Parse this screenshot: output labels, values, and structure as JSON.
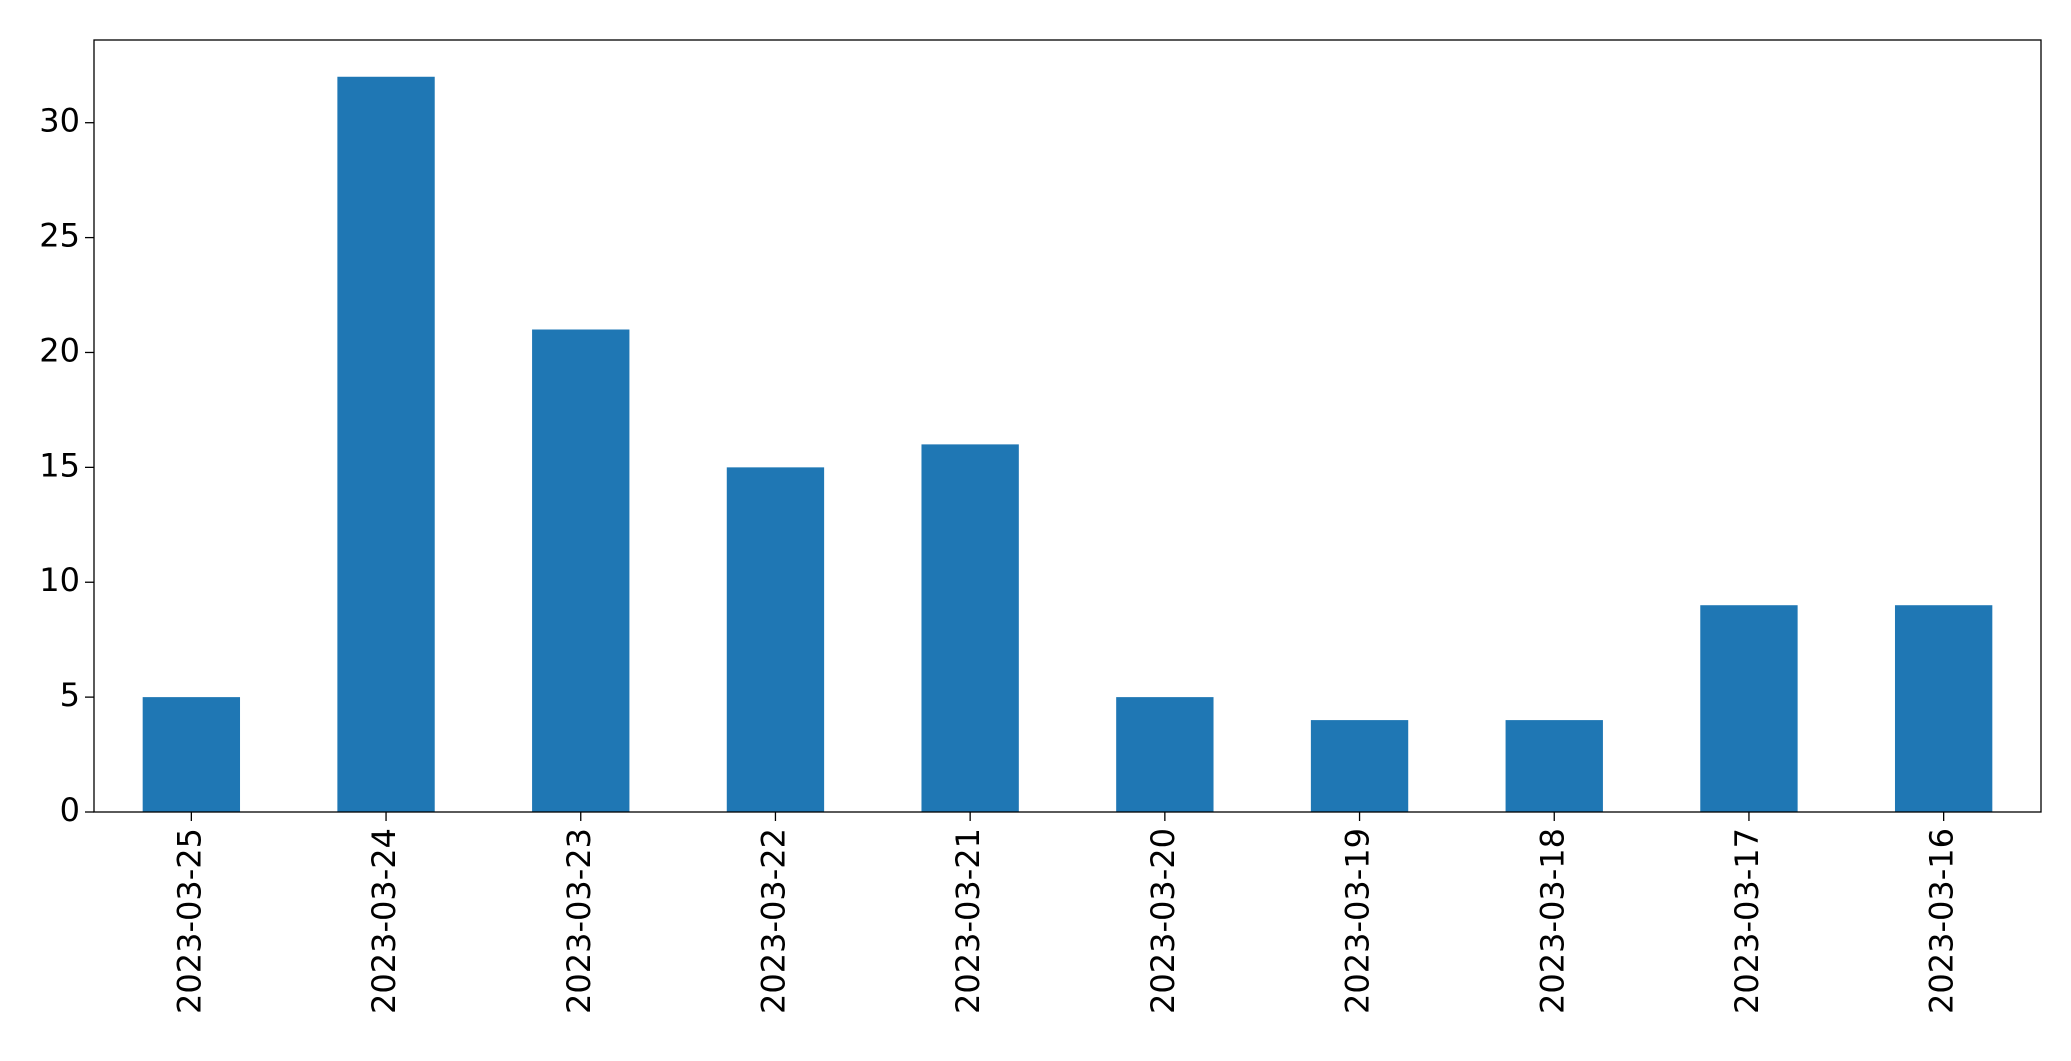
{
  "chart_data": {
    "type": "bar",
    "categories": [
      "2023-03-25",
      "2023-03-24",
      "2023-03-23",
      "2023-03-22",
      "2023-03-21",
      "2023-03-20",
      "2023-03-19",
      "2023-03-18",
      "2023-03-17",
      "2023-03-16"
    ],
    "values": [
      5,
      32,
      21,
      15,
      16,
      5,
      4,
      4,
      9,
      9
    ],
    "color": "#1f77b4",
    "ylim": [
      0,
      33.6
    ],
    "yticks": [
      0,
      5,
      10,
      15,
      20,
      25,
      30
    ],
    "grid": false
  }
}
